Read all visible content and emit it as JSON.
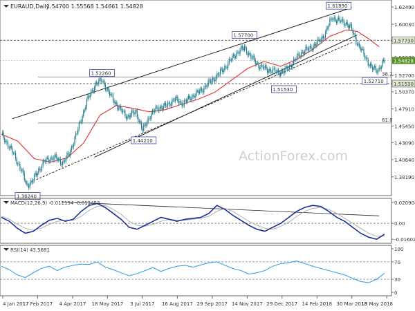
{
  "header": {
    "symbol": "EURAUD,Daily",
    "ohlc": "1.54700 1.55568 1.54661 1.54828"
  },
  "watermark": "ActionForex.com",
  "colors": {
    "candle": "#1f7a8c",
    "ma": "#e03030",
    "trend": "#111111",
    "macd": "#1a2e9b",
    "macd_signal": "#b0b0b0",
    "rsi": "#3aa0e0",
    "level": "#333333",
    "current": "#5a8f2a"
  },
  "chart_data": [
    {
      "type": "candlestick",
      "title": "EURAUD,Daily",
      "ylim": [
        1.36,
        1.63
      ],
      "y_ticks": [
        "1.62490",
        "1.60030",
        "1.57730",
        "1.55270",
        "1.54828",
        "1.52700",
        "1.51530",
        "1.50370",
        "1.47910",
        "1.45450",
        "1.43090",
        "1.40640",
        "1.38190"
      ],
      "x_ticks": [
        "4 Jan 2017",
        "17 Feb 2017",
        "4 Apr 2017",
        "18 May 2017",
        "3 Jul 2017",
        "16 Aug 2017",
        "29 Sep 2017",
        "14 Nov 2017",
        "29 Dec 2017",
        "14 Feb 2018",
        "30 Mar 2018",
        "15 May 2018"
      ],
      "series": [
        {
          "name": "",
          "points": [
            [
              0,
              1.443
            ],
            [
              6,
              1.428
            ],
            [
              12,
              1.412
            ],
            [
              18,
              1.392
            ],
            [
              23,
              1.37
            ],
            [
              28,
              1.375
            ],
            [
              34,
              1.392
            ],
            [
              40,
              1.405
            ],
            [
              48,
              1.41
            ],
            [
              56,
              1.402
            ],
            [
              62,
              1.415
            ],
            [
              70,
              1.45
            ],
            [
              78,
              1.49
            ],
            [
              86,
              1.515
            ],
            [
              92,
              1.52
            ],
            [
              100,
              1.497
            ],
            [
              108,
              1.479
            ],
            [
              115,
              1.468
            ],
            [
              123,
              1.475
            ],
            [
              129,
              1.448
            ],
            [
              135,
              1.468
            ],
            [
              142,
              1.48
            ],
            [
              150,
              1.483
            ],
            [
              158,
              1.493
            ],
            [
              166,
              1.487
            ],
            [
              174,
              1.497
            ],
            [
              182,
              1.505
            ],
            [
              190,
              1.517
            ],
            [
              198,
              1.528
            ],
            [
              206,
              1.542
            ],
            [
              214,
              1.558
            ],
            [
              222,
              1.567
            ],
            [
              228,
              1.553
            ],
            [
              236,
              1.54
            ],
            [
              244,
              1.535
            ],
            [
              252,
              1.532
            ],
            [
              258,
              1.532
            ],
            [
              266,
              1.545
            ],
            [
              274,
              1.56
            ],
            [
              282,
              1.566
            ],
            [
              290,
              1.575
            ],
            [
              296,
              1.588
            ],
            [
              302,
              1.61
            ],
            [
              308,
              1.605
            ],
            [
              314,
              1.603
            ],
            [
              320,
              1.593
            ],
            [
              326,
              1.57
            ],
            [
              332,
              1.555
            ],
            [
              338,
              1.537
            ],
            [
              344,
              1.535
            ],
            [
              350,
              1.548
            ]
          ]
        }
      ],
      "moving_average": [
        [
          0,
          1.443
        ],
        [
          15,
          1.433
        ],
        [
          30,
          1.408
        ],
        [
          45,
          1.403
        ],
        [
          60,
          1.409
        ],
        [
          75,
          1.43
        ],
        [
          90,
          1.47
        ],
        [
          105,
          1.484
        ],
        [
          120,
          1.48
        ],
        [
          135,
          1.475
        ],
        [
          150,
          1.478
        ],
        [
          165,
          1.486
        ],
        [
          180,
          1.493
        ],
        [
          195,
          1.503
        ],
        [
          210,
          1.52
        ],
        [
          225,
          1.537
        ],
        [
          240,
          1.547
        ],
        [
          255,
          1.54
        ],
        [
          270,
          1.55
        ],
        [
          285,
          1.565
        ],
        [
          300,
          1.583
        ],
        [
          315,
          1.592
        ],
        [
          325,
          1.59
        ],
        [
          335,
          1.58
        ],
        [
          345,
          1.568
        ]
      ],
      "levels": [
        {
          "label": "1.57730",
          "value": 1.5773
        },
        {
          "label": "1.54828",
          "value": 1.54828
        },
        {
          "label": "1.51530",
          "value": 1.5153
        },
        {
          "label": "38.2",
          "value": 1.5245
        },
        {
          "label": "61.8",
          "value": 1.459
        }
      ],
      "annotations": [
        {
          "label": "1.61890",
          "x": 308,
          "value": 1.6189
        },
        {
          "label": "1.57700",
          "x": 222,
          "value": 1.577
        },
        {
          "label": "1.52260",
          "x": 92,
          "value": 1.5226
        },
        {
          "label": "1.51530",
          "x": 258,
          "value": 1.5153
        },
        {
          "label": "1.52710",
          "x": 341,
          "value": 1.5271
        },
        {
          "label": "1.44210",
          "x": 130,
          "value": 1.4421
        },
        {
          "label": "1.36240",
          "x": 24,
          "value": 1.3624
        }
      ]
    },
    {
      "type": "line",
      "title": "MACD(12,26,9) -0.011154 -0.013453",
      "ylim": [
        -0.018,
        0.023
      ],
      "y_ticks": [
        "0.020904",
        "0.00",
        "-0.016023"
      ],
      "series": [
        {
          "name": "",
          "values": [
            0.006,
            0.002,
            -0.005,
            -0.01,
            -0.008,
            -0.002,
            0.003,
            0.005,
            0.002,
            0.004,
            0.012,
            0.018,
            0.02,
            0.016,
            0.01,
            0.004,
            -0.004,
            -0.006,
            -0.002,
            0.002,
            0.006,
            0.004,
            0.002,
            0.004,
            0.005,
            0.006,
            0.01,
            0.018,
            0.014,
            0.008,
            0.003,
            -0.002,
            -0.006,
            -0.008,
            -0.004,
            0.0,
            0.006,
            0.012,
            0.016,
            0.018,
            0.017,
            0.012,
            0.006,
            0.002,
            -0.004,
            -0.01,
            -0.014,
            -0.016,
            -0.011
          ]
        },
        {
          "name": "",
          "values": [
            0.007,
            0.004,
            -0.001,
            -0.005,
            -0.007,
            -0.005,
            -0.001,
            0.002,
            0.003,
            0.003,
            0.007,
            0.013,
            0.017,
            0.018,
            0.014,
            0.009,
            0.002,
            -0.002,
            -0.003,
            -0.001,
            0.002,
            0.004,
            0.003,
            0.003,
            0.004,
            0.005,
            0.007,
            0.012,
            0.015,
            0.012,
            0.007,
            0.002,
            -0.002,
            -0.005,
            -0.006,
            -0.003,
            0.001,
            0.007,
            0.012,
            0.015,
            0.016,
            0.014,
            0.01,
            0.005,
            0.0,
            -0.005,
            -0.01,
            -0.013,
            -0.013
          ]
        }
      ]
    },
    {
      "type": "line",
      "title": "RSI(14) 43.5681",
      "ylim": [
        0,
        100
      ],
      "y_ticks": [
        "100",
        "70",
        "30",
        "0"
      ],
      "series": [
        {
          "name": "",
          "values": [
            60,
            52,
            40,
            34,
            45,
            55,
            60,
            50,
            58,
            62,
            65,
            64,
            70,
            58,
            52,
            45,
            38,
            43,
            50,
            57,
            48,
            55,
            60,
            62,
            58,
            63,
            68,
            70,
            62,
            55,
            50,
            42,
            45,
            50,
            60,
            66,
            68,
            72,
            66,
            60,
            55,
            50,
            45,
            40,
            32,
            25,
            22,
            30,
            44
          ]
        }
      ]
    }
  ]
}
